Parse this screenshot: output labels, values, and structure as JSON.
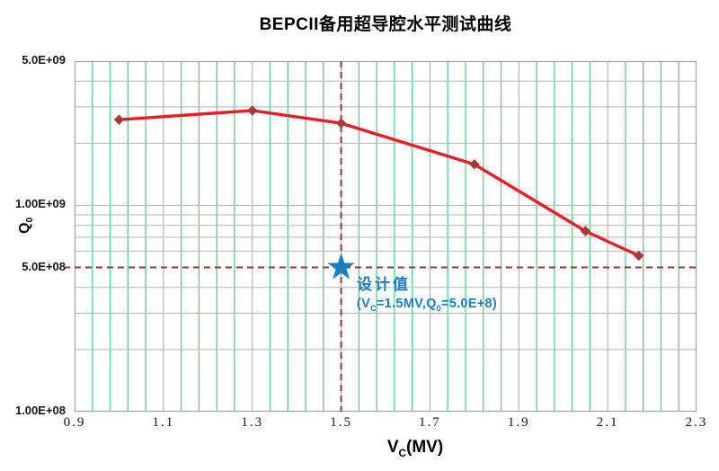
{
  "title": "BEPCII备用超导腔水平测试曲线",
  "colors": {
    "line": "#EC1C24",
    "marker": "#A63A35",
    "crosshair": "#953735",
    "star": "#1B7EC3",
    "annotation_text": "#1B7EC3",
    "grid_green": "#5FC98F",
    "grid_major": "#A6A6A6",
    "grid_gray": "#B5B5B5",
    "border": "#A6A6A6"
  },
  "chart_data": {
    "type": "line",
    "title": "BEPCII备用超导腔水平测试曲线",
    "x_axis": {
      "label_base": "V",
      "label_sub": "C",
      "label_rest": "(MV)",
      "min": 0.9,
      "max": 2.3,
      "major_step": 0.2,
      "minor_step": 0.04,
      "ticks": [
        {
          "v": 0.9,
          "label": "0.9"
        },
        {
          "v": 1.1,
          "label": "1.1"
        },
        {
          "v": 1.3,
          "label": "1.3"
        },
        {
          "v": 1.5,
          "label": "1.5"
        },
        {
          "v": 1.7,
          "label": "1.7"
        },
        {
          "v": 1.9,
          "label": "1.9"
        },
        {
          "v": 2.1,
          "label": "2.1"
        },
        {
          "v": 2.3,
          "label": "2.3"
        }
      ]
    },
    "y_axis": {
      "label_base": "Q",
      "label_sub": "0",
      "scale": "log",
      "min": 100000000.0,
      "max": 5000000000.0,
      "gridlines": [
        4000000000.0,
        3000000000.0,
        2000000000.0,
        1000000000.0,
        900000000.0,
        800000000.0,
        700000000.0,
        600000000.0,
        400000000.0,
        300000000.0,
        200000000.0
      ],
      "ticks": [
        {
          "v": 5000000000.0,
          "label": "5.0E+09"
        },
        {
          "v": 1000000000.0,
          "label": "1.00E+09"
        },
        {
          "v": 500000000.0,
          "label": "5.0E+08"
        },
        {
          "v": 100000000.0,
          "label": "1.00E+08"
        }
      ]
    },
    "series": [
      {
        "points": [
          {
            "x": 1.0,
            "y": 2600000000.0
          },
          {
            "x": 1.3,
            "y": 2880000000.0
          },
          {
            "x": 1.5,
            "y": 2500000000.0
          },
          {
            "x": 1.8,
            "y": 1580000000.0
          },
          {
            "x": 2.05,
            "y": 750000000.0
          },
          {
            "x": 2.17,
            "y": 570000000.0
          }
        ]
      }
    ],
    "design_point": {
      "x": 1.5,
      "y": 500000000.0,
      "label": "设计值",
      "detail_p1": "(V",
      "detail_s1": "C",
      "detail_p2": "=1.5MV,Q",
      "detail_s2": "0",
      "detail_p3": "=5.0E+8)"
    }
  }
}
